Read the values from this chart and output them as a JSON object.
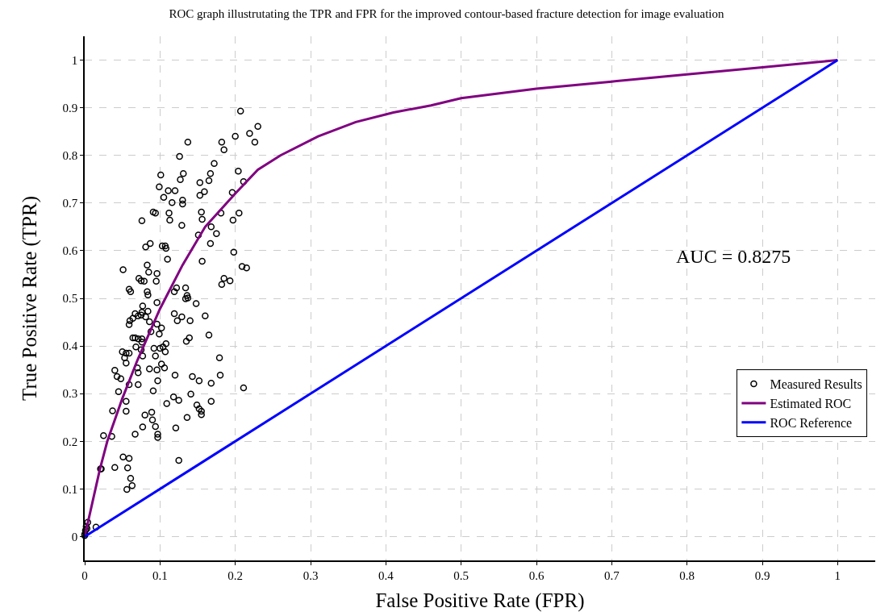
{
  "chart_data": {
    "type": "scatter",
    "title": "ROC graph illustrutating the TPR and FPR for the improved contour-based fracture detection for image evaluation",
    "xlabel": "False Positive Rate (FPR)",
    "ylabel": "True Positive Rate (TPR)",
    "annotations": [
      "AUC = 0.8275"
    ],
    "xlim": [
      0,
      1.05
    ],
    "ylim": [
      -0.05,
      1.05
    ],
    "xticks": [
      0,
      0.1,
      0.2,
      0.3,
      0.4,
      0.5,
      0.6,
      0.7,
      0.8,
      0.9,
      1
    ],
    "yticks": [
      0,
      0.1,
      0.2,
      0.3,
      0.4,
      0.5,
      0.6,
      0.7,
      0.8,
      0.9,
      1
    ],
    "grid": true,
    "legend": "right",
    "series": [
      {
        "name": "Measured Results",
        "marker": "circle",
        "color": "#000000",
        "x": [
          0.207,
          0.23,
          0.219,
          0.2,
          0.182,
          0.137,
          0.226,
          0.185,
          0.172,
          0.126,
          0.204,
          0.131,
          0.167,
          0.101,
          0.165,
          0.211,
          0.153,
          0.127,
          0.099,
          0.111,
          0.12,
          0.159,
          0.196,
          0.153,
          0.105,
          0.13,
          0.116,
          0.13,
          0.091,
          0.094,
          0.155,
          0.205,
          0.112,
          0.181,
          0.076,
          0.113,
          0.197,
          0.156,
          0.129,
          0.168,
          0.175,
          0.151,
          0.087,
          0.103,
          0.107,
          0.167,
          0.108,
          0.081,
          0.198,
          0.11,
          0.156,
          0.051,
          0.209,
          0.215,
          0.083,
          0.096,
          0.085,
          0.072,
          0.075,
          0.079,
          0.095,
          0.185,
          0.193,
          0.182,
          0.059,
          0.061,
          0.122,
          0.134,
          0.083,
          0.119,
          0.084,
          0.136,
          0.137,
          0.134,
          0.148,
          0.077,
          0.096,
          0.076,
          0.084,
          0.067,
          0.071,
          0.064,
          0.06,
          0.059,
          0.075,
          0.081,
          0.086,
          0.119,
          0.129,
          0.16,
          0.123,
          0.14,
          0.096,
          0.102,
          0.088,
          0.064,
          0.067,
          0.071,
          0.076,
          0.099,
          0.076,
          0.139,
          0.135,
          0.165,
          0.108,
          0.068,
          0.104,
          0.075,
          0.092,
          0.1,
          0.05,
          0.055,
          0.059,
          0.107,
          0.053,
          0.179,
          0.094,
          0.077,
          0.055,
          0.102,
          0.07,
          0.04,
          0.086,
          0.096,
          0.106,
          0.143,
          0.043,
          0.071,
          0.18,
          0.12,
          0.048,
          0.152,
          0.097,
          0.059,
          0.071,
          0.168,
          0.045,
          0.091,
          0.141,
          0.211,
          0.055,
          0.109,
          0.118,
          0.125,
          0.168,
          0.149,
          0.055,
          0.152,
          0.037,
          0.089,
          0.08,
          0.155,
          0.136,
          0.155,
          0.09,
          0.094,
          0.077,
          0.121,
          0.025,
          0.036,
          0.067,
          0.097,
          0.097,
          0.051,
          0.059,
          0.021,
          0.022,
          0.125,
          0.04,
          0.057,
          0.061,
          0.063,
          0.056,
          0.015,
          0.004,
          0.002,
          0.001,
          0,
          0,
          0.003
        ],
        "values": [
          0.893,
          0.861,
          0.846,
          0.84,
          0.828,
          0.828,
          0.828,
          0.812,
          0.783,
          0.798,
          0.767,
          0.762,
          0.762,
          0.759,
          0.747,
          0.745,
          0.743,
          0.749,
          0.734,
          0.726,
          0.726,
          0.724,
          0.722,
          0.716,
          0.712,
          0.706,
          0.701,
          0.698,
          0.681,
          0.679,
          0.681,
          0.679,
          0.679,
          0.679,
          0.663,
          0.664,
          0.664,
          0.666,
          0.653,
          0.65,
          0.636,
          0.633,
          0.615,
          0.61,
          0.61,
          0.615,
          0.605,
          0.608,
          0.597,
          0.582,
          0.578,
          0.56,
          0.567,
          0.564,
          0.57,
          0.552,
          0.555,
          0.542,
          0.537,
          0.536,
          0.536,
          0.542,
          0.537,
          0.529,
          0.519,
          0.514,
          0.522,
          0.522,
          0.514,
          0.514,
          0.507,
          0.506,
          0.501,
          0.499,
          0.489,
          0.484,
          0.491,
          0.471,
          0.473,
          0.468,
          0.463,
          0.458,
          0.453,
          0.445,
          0.465,
          0.461,
          0.451,
          0.468,
          0.461,
          0.463,
          0.453,
          0.453,
          0.446,
          0.438,
          0.43,
          0.417,
          0.417,
          0.415,
          0.415,
          0.425,
          0.408,
          0.417,
          0.41,
          0.423,
          0.405,
          0.398,
          0.398,
          0.392,
          0.395,
          0.395,
          0.388,
          0.385,
          0.385,
          0.388,
          0.375,
          0.375,
          0.379,
          0.379,
          0.364,
          0.362,
          0.354,
          0.349,
          0.352,
          0.35,
          0.354,
          0.336,
          0.336,
          0.344,
          0.339,
          0.339,
          0.331,
          0.327,
          0.327,
          0.319,
          0.319,
          0.322,
          0.304,
          0.306,
          0.299,
          0.312,
          0.284,
          0.279,
          0.293,
          0.286,
          0.284,
          0.276,
          0.263,
          0.268,
          0.264,
          0.261,
          0.255,
          0.263,
          0.25,
          0.256,
          0.245,
          0.231,
          0.23,
          0.228,
          0.212,
          0.21,
          0.215,
          0.215,
          0.208,
          0.167,
          0.164,
          0.142,
          0.142,
          0.16,
          0.145,
          0.144,
          0.122,
          0.107,
          0.099,
          0.02,
          0.03,
          0.021,
          0.013,
          0.005,
          0.002,
          0.017
        ]
      },
      {
        "name": "Estimated ROC",
        "type": "line",
        "marker": "none",
        "color": "#800080",
        "x": [
          0,
          0.01,
          0.02,
          0.03,
          0.05,
          0.07,
          0.1,
          0.13,
          0.16,
          0.2,
          0.23,
          0.26,
          0.31,
          0.36,
          0.41,
          0.46,
          0.5,
          0.6,
          0.7,
          0.8,
          0.9,
          1
        ],
        "values": [
          0,
          0.07,
          0.14,
          0.2,
          0.29,
          0.37,
          0.478,
          0.57,
          0.65,
          0.72,
          0.77,
          0.8,
          0.84,
          0.87,
          0.89,
          0.905,
          0.92,
          0.94,
          0.955,
          0.97,
          0.985,
          1
        ]
      },
      {
        "name": "ROC Reference",
        "type": "line",
        "marker": "none",
        "color": "#0000ff",
        "x": [
          0,
          1
        ],
        "values": [
          0,
          1
        ]
      }
    ]
  }
}
